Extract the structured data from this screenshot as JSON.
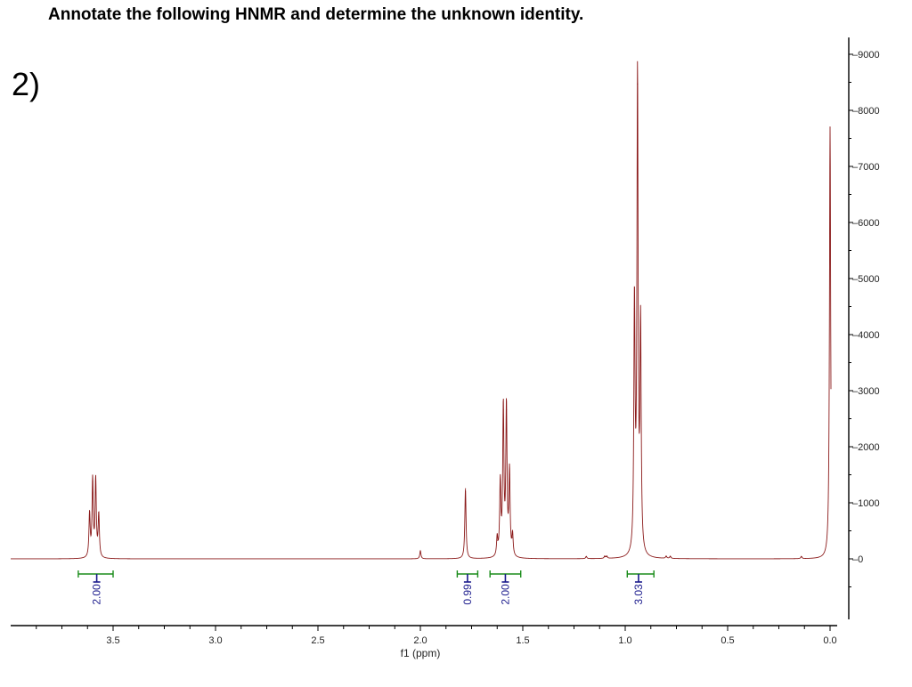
{
  "title": "Annotate the following HNMR and determine the unknown identity.",
  "problem_number": "2)",
  "chart_data": {
    "type": "line",
    "title": "Annotate the following HNMR and determine the unknown identity.",
    "xlabel": "f1 (ppm)",
    "ylabel": "",
    "x_reversed": true,
    "xlim": [
      4.0,
      0.0
    ],
    "ylim": [
      -1000,
      9300
    ],
    "x_ticks": [
      3.5,
      3.0,
      2.5,
      2.0,
      1.5,
      1.0,
      0.5,
      0.0
    ],
    "x_tick_labels": [
      "3.5",
      "3.0",
      "2.5",
      "2.0",
      "1.5",
      "1.0",
      "0.5",
      "0.0"
    ],
    "y_ticks": [
      0,
      1000,
      2000,
      3000,
      4000,
      5000,
      6000,
      7000,
      8000,
      9000
    ],
    "y_tick_labels": [
      "0",
      "1000",
      "2000",
      "3000",
      "4000",
      "5000",
      "6000",
      "7000",
      "8000",
      "9000"
    ],
    "y_axis_position": "right",
    "series_color": "#8b1a1a",
    "integration_color": "#1a8c1a",
    "integration_label_color": "#1a1a8c",
    "peaks": [
      {
        "x": 3.615,
        "y": 780
      },
      {
        "x": 3.6,
        "y": 1380
      },
      {
        "x": 3.585,
        "y": 1380
      },
      {
        "x": 3.57,
        "y": 760
      },
      {
        "x": 2.0,
        "y": 140
      },
      {
        "x": 1.78,
        "y": 1250
      },
      {
        "x": 1.625,
        "y": 330
      },
      {
        "x": 1.61,
        "y": 1310
      },
      {
        "x": 1.595,
        "y": 2660
      },
      {
        "x": 1.58,
        "y": 2660
      },
      {
        "x": 1.565,
        "y": 1500
      },
      {
        "x": 1.55,
        "y": 380
      },
      {
        "x": 1.19,
        "y": 40
      },
      {
        "x": 1.1,
        "y": 40
      },
      {
        "x": 1.09,
        "y": 40
      },
      {
        "x": 0.955,
        "y": 4460
      },
      {
        "x": 0.94,
        "y": 8470
      },
      {
        "x": 0.925,
        "y": 4030
      },
      {
        "x": 0.8,
        "y": 40
      },
      {
        "x": 0.78,
        "y": 40
      },
      {
        "x": 0.14,
        "y": 40
      },
      {
        "x": 0.0,
        "y": 7700
      }
    ],
    "integrations": [
      {
        "x_start": 3.67,
        "x_end": 3.5,
        "x_label": 3.58,
        "value": "2.00"
      },
      {
        "x_start": 1.82,
        "x_end": 1.72,
        "x_label": 1.77,
        "value": "0.99"
      },
      {
        "x_start": 1.66,
        "x_end": 1.51,
        "x_label": 1.585,
        "value": "2.00"
      },
      {
        "x_start": 0.99,
        "x_end": 0.86,
        "x_label": 0.935,
        "value": "3.03"
      }
    ]
  }
}
